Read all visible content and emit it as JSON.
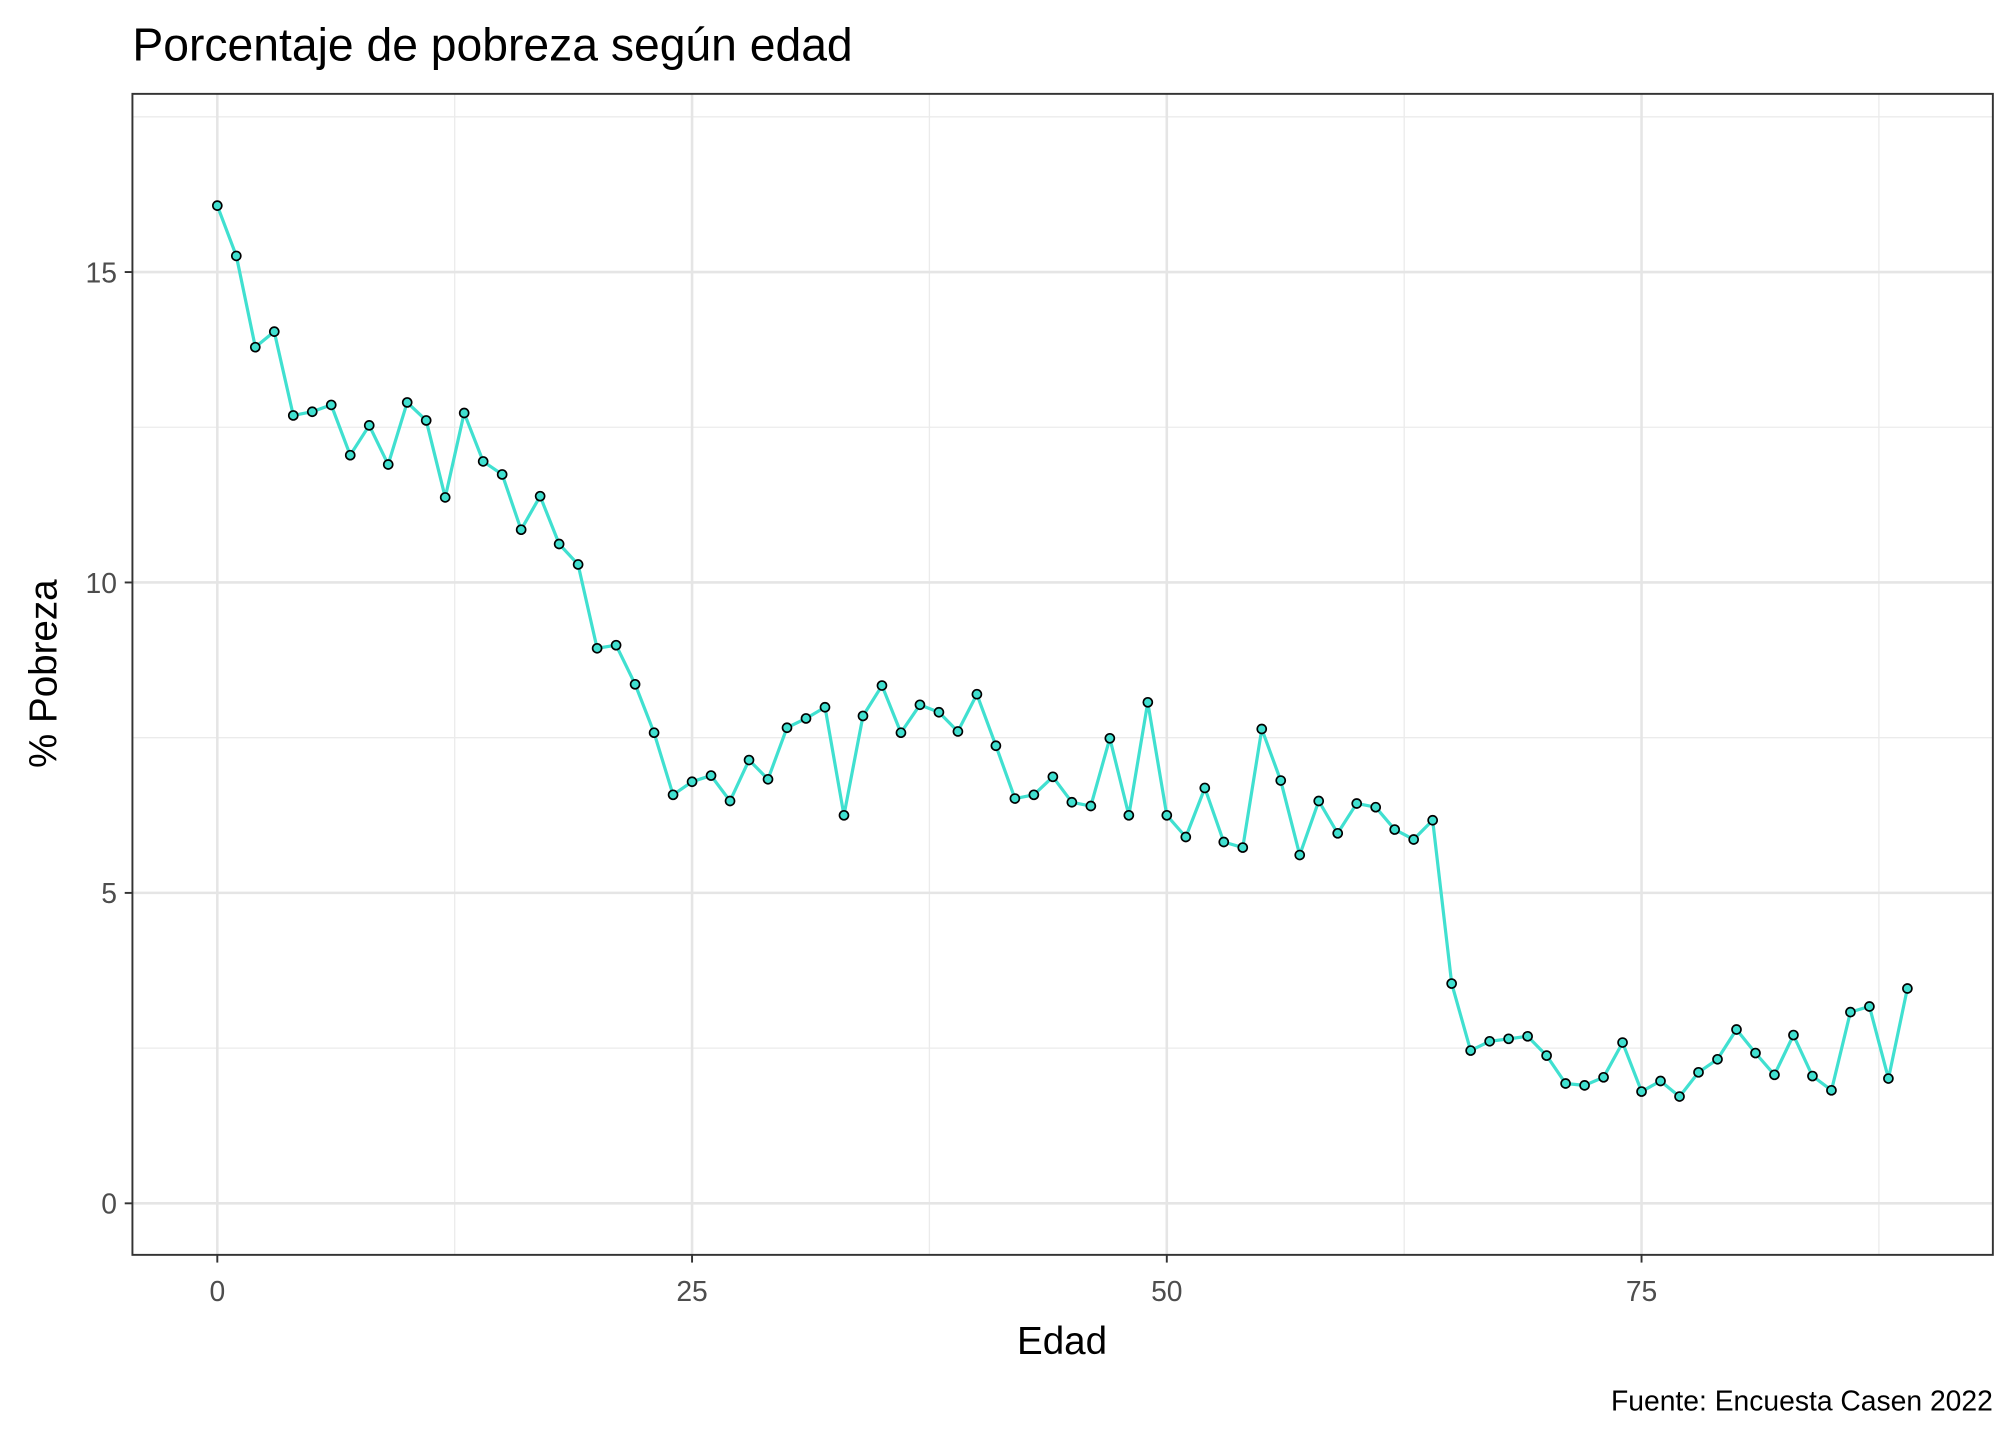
{
  "chart_data": {
    "type": "line",
    "title": "Porcentaje de pobreza según edad",
    "xlabel": "Edad",
    "ylabel": "% Pobreza",
    "caption": "Fuente: Encuesta Casen 2022",
    "xlim": [
      -4.47,
      93.5
    ],
    "ylim": [
      -0.83,
      17.87
    ],
    "xticks": [
      0,
      25,
      50,
      75
    ],
    "xtick_labels": [
      "0",
      "25",
      "50",
      "75"
    ],
    "yticks": [
      0,
      5,
      10,
      15
    ],
    "ytick_labels": [
      "0",
      "5",
      "10",
      "15"
    ],
    "grid": true,
    "line_color": "#40E0D0",
    "point_fill": "#40E0D0",
    "point_stroke": "#000000",
    "x": [
      0,
      1,
      2,
      3,
      4,
      5,
      6,
      7,
      8,
      9,
      10,
      11,
      12,
      13,
      14,
      15,
      16,
      17,
      18,
      19,
      20,
      21,
      22,
      23,
      24,
      25,
      26,
      27,
      28,
      29,
      30,
      31,
      32,
      33,
      34,
      35,
      36,
      37,
      38,
      39,
      40,
      41,
      42,
      43,
      44,
      45,
      46,
      47,
      48,
      49,
      50,
      51,
      52,
      53,
      54,
      55,
      56,
      57,
      58,
      59,
      60,
      61,
      62,
      63,
      64,
      65,
      66,
      67,
      68,
      69,
      70,
      71,
      72,
      73,
      74,
      75,
      76,
      77,
      78,
      79,
      80,
      81,
      82,
      83,
      84,
      85,
      86,
      87,
      88,
      89
    ],
    "y": [
      16.07,
      15.26,
      13.79,
      14.04,
      12.69,
      12.75,
      12.86,
      12.05,
      12.53,
      11.9,
      12.9,
      12.61,
      11.37,
      12.73,
      11.95,
      11.74,
      10.85,
      11.39,
      10.62,
      10.29,
      8.94,
      8.99,
      8.36,
      7.58,
      6.58,
      6.79,
      6.89,
      6.48,
      7.14,
      6.83,
      7.66,
      7.81,
      7.99,
      6.25,
      7.85,
      8.34,
      7.58,
      8.03,
      7.91,
      7.6,
      8.2,
      7.37,
      6.52,
      6.58,
      6.87,
      6.46,
      6.4,
      7.49,
      6.25,
      8.07,
      6.25,
      5.9,
      6.69,
      5.82,
      5.73,
      7.64,
      6.81,
      5.61,
      6.48,
      5.96,
      6.44,
      6.38,
      6.02,
      5.86,
      6.17,
      3.54,
      2.46,
      2.61,
      2.65,
      2.69,
      2.38,
      1.93,
      1.9,
      2.03,
      2.59,
      1.8,
      1.97,
      1.72,
      2.11,
      2.32,
      2.8,
      2.42,
      2.07,
      2.71,
      2.05,
      1.82,
      3.08,
      3.17,
      2.01,
      3.46
    ]
  }
}
